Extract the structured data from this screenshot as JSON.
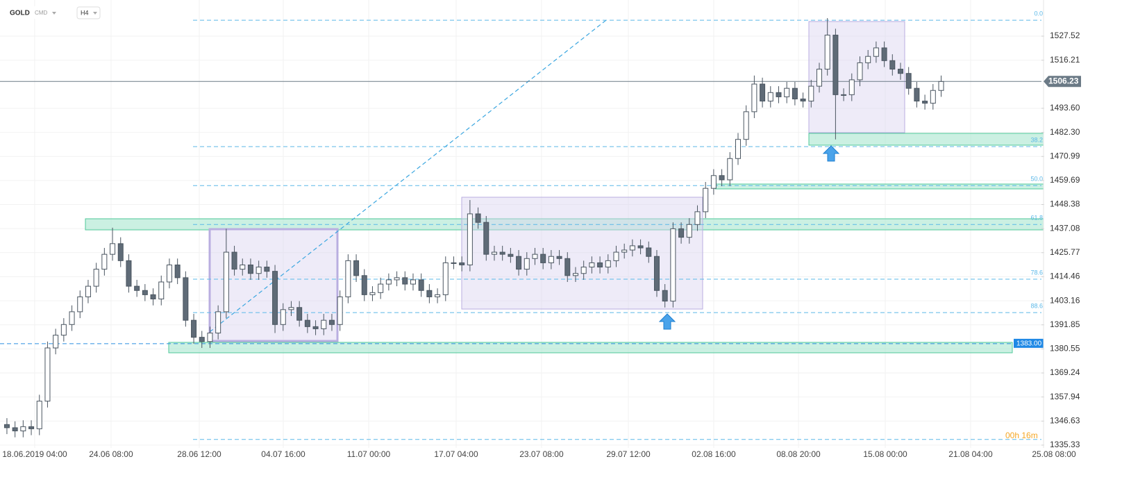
{
  "chart_data": {
    "type": "candlestick",
    "symbol": "GOLD",
    "market": "CMD",
    "timeframe": "H4",
    "countdown": "00h 16m",
    "up_color": "#ffffff",
    "down_color": "#5f6b77",
    "wick_color": "#4a5560",
    "open": [
      1345,
      1343.5,
      1342,
      1344,
      1343,
      1356,
      1381,
      1387,
      1392,
      1398,
      1405,
      1410,
      1418,
      1425,
      1430,
      1422,
      1410,
      1408,
      1406,
      1404,
      1412,
      1420,
      1414,
      1394,
      1386,
      1384,
      1388,
      1398,
      1426,
      1418,
      1420,
      1416,
      1419,
      1417,
      1392,
      1399,
      1400,
      1394,
      1391,
      1390,
      1394,
      1392,
      1405,
      1422,
      1415,
      1406,
      1407,
      1411,
      1413,
      1414,
      1411,
      1413,
      1408,
      1405,
      1406,
      1421,
      1421,
      1420,
      1444,
      1440,
      1425,
      1426,
      1425,
      1424,
      1418,
      1423,
      1425,
      1421,
      1424,
      1423,
      1415,
      1416,
      1419,
      1421,
      1419,
      1422,
      1426,
      1427,
      1429,
      1428,
      1424,
      1408,
      1403,
      1437,
      1433,
      1439,
      1445,
      1456,
      1462,
      1460,
      1470,
      1479,
      1492,
      1505,
      1497,
      1501,
      1499,
      1503,
      1498,
      1497,
      1504,
      1512,
      1528,
      1500,
      1500,
      1507,
      1515,
      1518,
      1522,
      1516,
      1512,
      1510,
      1503,
      1497,
      1496,
      1502
    ],
    "high": [
      1348,
      1346.5,
      1347,
      1347,
      1359,
      1384,
      1390,
      1395,
      1401,
      1408,
      1413,
      1421,
      1428,
      1437.5,
      1433,
      1425,
      1413,
      1411,
      1409,
      1415,
      1423,
      1423,
      1417,
      1397,
      1389,
      1391,
      1401,
      1437,
      1429,
      1423,
      1423,
      1422,
      1422,
      1420,
      1402,
      1403,
      1403,
      1397,
      1394,
      1397,
      1397,
      1408,
      1425,
      1425,
      1418,
      1410,
      1414,
      1416,
      1417,
      1417,
      1416,
      1416,
      1411,
      1409,
      1424,
      1424,
      1424,
      1450.5,
      1447,
      1443,
      1429,
      1429,
      1428,
      1427,
      1426,
      1428,
      1428,
      1427,
      1427,
      1426,
      1419,
      1422,
      1424,
      1424,
      1425,
      1429,
      1430,
      1432,
      1432,
      1431,
      1427,
      1411,
      1440,
      1440,
      1442,
      1448,
      1459,
      1465,
      1465,
      1473,
      1482,
      1495,
      1509,
      1508,
      1504,
      1504,
      1506,
      1506,
      1501,
      1507,
      1515,
      1536,
      1531,
      1503,
      1510,
      1518,
      1521,
      1525,
      1525,
      1519,
      1515,
      1513,
      1506,
      1500,
      1505,
      1509
    ],
    "low": [
      1340.5,
      1339,
      1339,
      1340,
      1340,
      1353,
      1378,
      1384,
      1389,
      1395,
      1402,
      1407,
      1415,
      1422,
      1419,
      1407,
      1405,
      1403,
      1401,
      1401,
      1409,
      1411,
      1391,
      1383,
      1381,
      1381,
      1385,
      1395,
      1415,
      1415,
      1413,
      1413,
      1414,
      1388,
      1389,
      1396,
      1391,
      1388,
      1387,
      1387,
      1389,
      1389,
      1402,
      1412,
      1403,
      1403,
      1404,
      1408,
      1410,
      1408,
      1408,
      1405,
      1402,
      1402,
      1403,
      1418,
      1417,
      1417,
      1437,
      1422,
      1422,
      1422,
      1421,
      1415,
      1415,
      1420,
      1418,
      1418,
      1420,
      1412,
      1412,
      1413,
      1416,
      1416,
      1416,
      1419,
      1423,
      1424,
      1425,
      1421,
      1405,
      1400,
      1400,
      1430,
      1430,
      1436,
      1442,
      1453,
      1457,
      1457,
      1467,
      1476,
      1489,
      1494,
      1494,
      1496,
      1496,
      1495,
      1494,
      1494,
      1501,
      1509,
      1479,
      1497,
      1497,
      1504,
      1512,
      1515,
      1513,
      1509,
      1507,
      1500,
      1494,
      1493,
      1493,
      1499
    ],
    "close": [
      1343.5,
      1342,
      1344,
      1343,
      1356,
      1381,
      1387,
      1392,
      1398,
      1405,
      1410,
      1418,
      1425,
      1430,
      1422,
      1410,
      1408,
      1406,
      1404,
      1412,
      1420,
      1414,
      1394,
      1386,
      1384,
      1388,
      1398,
      1426,
      1418,
      1420,
      1416,
      1419,
      1417,
      1392,
      1399,
      1400,
      1394,
      1391,
      1390,
      1394,
      1392,
      1405,
      1422,
      1415,
      1406,
      1407,
      1411,
      1413,
      1414,
      1411,
      1413,
      1408,
      1405,
      1406,
      1421,
      1421,
      1420,
      1444,
      1440,
      1425,
      1426,
      1425,
      1424,
      1418,
      1423,
      1425,
      1421,
      1424,
      1423,
      1415,
      1416,
      1419,
      1421,
      1419,
      1422,
      1426,
      1427,
      1429,
      1428,
      1424,
      1408,
      1403,
      1437,
      1433,
      1439,
      1445,
      1456,
      1462,
      1460,
      1470,
      1479,
      1492,
      1505,
      1497,
      1501,
      1499,
      1503,
      1498,
      1497,
      1504,
      1512,
      1528,
      1500,
      1500,
      1507,
      1515,
      1518,
      1522,
      1516,
      1512,
      1510,
      1503,
      1497,
      1496,
      1502,
      1506.2
    ],
    "xlim": [
      -0.85,
      127.35
    ],
    "xticks": [
      {
        "value": 3.42,
        "label": "18.06.2019 04:00"
      },
      {
        "value": 12.82,
        "label": "24.06 08:00"
      },
      {
        "value": 23.68,
        "label": "28.06 12:00"
      },
      {
        "value": 34.02,
        "label": "04.07 16:00"
      },
      {
        "value": 44.53,
        "label": "11.07 00:00"
      },
      {
        "value": 55.3,
        "label": "17.07 04:00"
      },
      {
        "value": 65.81,
        "label": "23.07 08:00"
      },
      {
        "value": 76.5,
        "label": "29.07 12:00"
      },
      {
        "value": 87.01,
        "label": "02.08 16:00"
      },
      {
        "value": 97.44,
        "label": "08.08 20:00"
      },
      {
        "value": 108.12,
        "label": "15.08 00:00"
      },
      {
        "value": 118.63,
        "label": "21.08 04:00"
      },
      {
        "value": 128.89,
        "label": "25.08 08:00"
      }
    ],
    "ylim": [
      1334.0,
      1544.5
    ],
    "yticks": [
      1335.33,
      1346.63,
      1357.94,
      1369.24,
      1380.55,
      1391.85,
      1403.16,
      1414.46,
      1425.77,
      1437.08,
      1448.38,
      1459.69,
      1470.99,
      {
        "value": 1482.3,
        "label": "1482.30"
      },
      {
        "value": 1493.6,
        "label": "1493.60"
      },
      1516.21,
      1527.52
    ],
    "grid": true,
    "last_price": 1506.23,
    "alert_line": {
      "value": 1383,
      "label": "1383.00"
    },
    "fib_levels": [
      {
        "value": 1535.0,
        "label": "0.0"
      },
      {
        "value": 1475.6,
        "label": "38.2"
      },
      {
        "value": 1457.3,
        "label": "50.0"
      },
      {
        "value": 1439.0,
        "label": "61.8"
      },
      {
        "value": 1413.3,
        "label": "78.6"
      },
      {
        "value": 1397.6,
        "label": "88.6"
      },
      {
        "value": 1338.0,
        "label": null
      }
    ]
  }
}
